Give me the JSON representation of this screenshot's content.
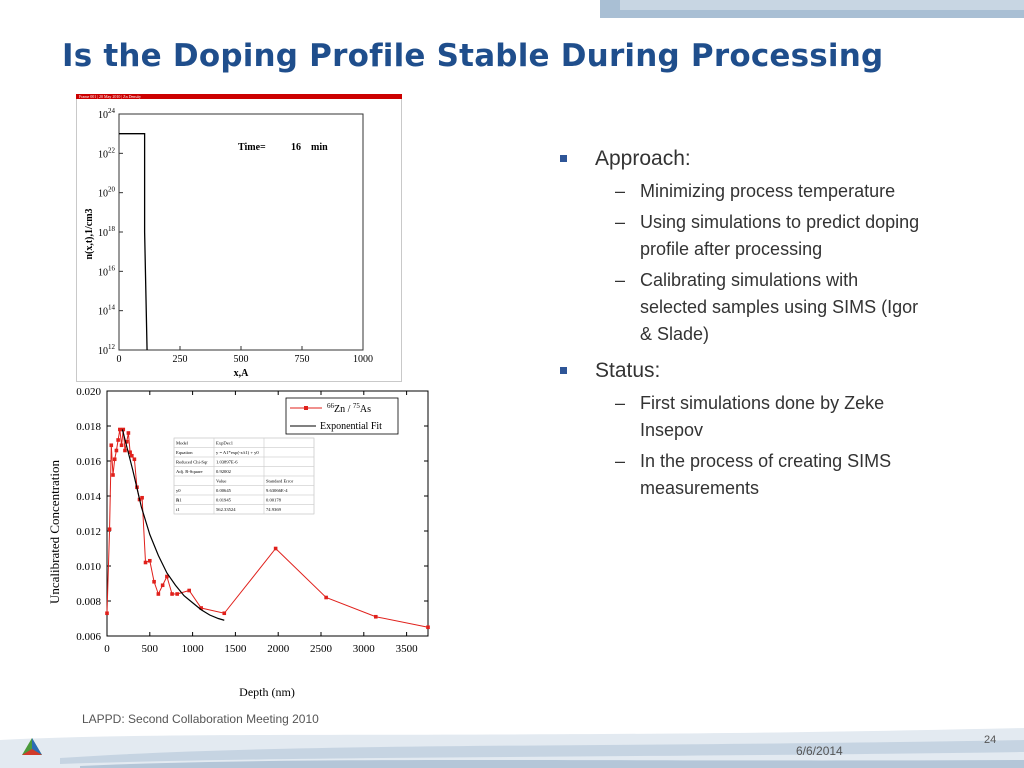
{
  "title": "Is the Doping Profile Stable During Processing",
  "chart_data": [
    {
      "type": "line",
      "header": "Frame 001  |  20 May 2010  |  Zn Density",
      "annotation_label": "Time=",
      "annotation_value": "16",
      "annotation_unit": "min",
      "xlabel": "x,A",
      "ylabel": "n(x,t),1/cm3",
      "xlim": [
        0,
        1000
      ],
      "ylim_log10": [
        12,
        24
      ],
      "x_ticks": [
        "0",
        "250",
        "500",
        "750",
        "1000"
      ],
      "y_ticks": [
        {
          "base": "10",
          "exp": "24"
        },
        {
          "base": "10",
          "exp": "22"
        },
        {
          "base": "10",
          "exp": "20"
        },
        {
          "base": "10",
          "exp": "18"
        },
        {
          "base": "10",
          "exp": "16"
        },
        {
          "base": "10",
          "exp": "14"
        },
        {
          "base": "10",
          "exp": "12"
        }
      ],
      "series": [
        {
          "x": [
            0,
            100,
            105,
            105,
            110,
            115
          ],
          "log10_y": [
            23.0,
            23.0,
            23.0,
            18.0,
            15.0,
            12.0
          ]
        }
      ]
    },
    {
      "type": "line",
      "xlabel": "Depth (nm)",
      "ylabel": "Uncalibrated Concentration",
      "xlim": [
        0,
        3750
      ],
      "ylim": [
        0.006,
        0.02
      ],
      "x_ticks": [
        "0",
        "500",
        "1000",
        "1500",
        "2000",
        "2500",
        "3000",
        "3500"
      ],
      "y_ticks": [
        "0.006",
        "0.008",
        "0.010",
        "0.012",
        "0.014",
        "0.016",
        "0.018",
        "0.020"
      ],
      "legend": {
        "position": "top-right",
        "series1_sup1": "66",
        "series1_a": "Zn / ",
        "series1_sup2": "75",
        "series1_b": "As",
        "fit": "Exponential Fit"
      },
      "series": [
        {
          "color": "#e0201b",
          "x": [
            0,
            30,
            50,
            70,
            90,
            110,
            130,
            150,
            170,
            190,
            210,
            230,
            250,
            270,
            290,
            320,
            350,
            380,
            410,
            450,
            500,
            550,
            600,
            650,
            700,
            760,
            820,
            960,
            1100,
            1370,
            1970,
            2560,
            3140,
            3750
          ],
          "y": [
            0.0073,
            0.0121,
            0.0169,
            0.0152,
            0.0161,
            0.0166,
            0.0172,
            0.0178,
            0.0169,
            0.0178,
            0.0166,
            0.0171,
            0.0176,
            0.0165,
            0.0163,
            0.0161,
            0.0145,
            0.0138,
            0.0139,
            0.0102,
            0.0103,
            0.0091,
            0.0084,
            0.0089,
            0.0094,
            0.0084,
            0.0084,
            0.0086,
            0.0076,
            0.0073,
            0.011,
            0.0082,
            0.0071,
            0.0065
          ]
        },
        {
          "color": "#000000",
          "x": [
            180,
            300,
            400,
            500,
            600,
            700,
            800,
            900,
            1000,
            1100,
            1200,
            1300,
            1370
          ],
          "y": [
            0.0178,
            0.0155,
            0.0134,
            0.0118,
            0.0106,
            0.0096,
            0.0089,
            0.0083,
            0.0079,
            0.0075,
            0.0072,
            0.007,
            0.0069
          ]
        }
      ],
      "fit_table": {
        "rows": [
          [
            "Model",
            "ExpDec1",
            ""
          ],
          [
            "Equation",
            "y = A1*exp(-x/t1) + y0",
            ""
          ],
          [
            "Reduced Chi-Sqr",
            "1.03897E-6",
            ""
          ],
          [
            "Adj. R-Square",
            "0.92002",
            ""
          ],
          [
            "",
            "Value",
            "Standard Error"
          ],
          [
            "y0",
            "0.00645",
            "9.63066E-4"
          ],
          [
            "A1",
            "0.01945",
            "0.00178"
          ],
          [
            "t1",
            "562.33524",
            "74.9369"
          ]
        ],
        "group_label": "B"
      }
    }
  ],
  "bullets": [
    {
      "label": "Approach:",
      "sub": [
        "Minimizing process temperature",
        "Using simulations to predict doping profile after processing",
        "Calibrating simulations with selected samples using SIMS (Igor & Slade)"
      ]
    },
    {
      "label": "Status:",
      "sub": [
        "First simulations done by Zeke Insepov",
        "In the process of creating SIMS measurements"
      ]
    }
  ],
  "footer": {
    "text": "LAPPD: Second Collaboration Meeting 2010",
    "date": "6/6/2014",
    "page": "24"
  },
  "colors": {
    "title": "#1f4e8c",
    "bullet": "#2e5597",
    "top_band": "#a9bfd4",
    "header_bar": "#cc0000",
    "data_red": "#e0201b"
  }
}
